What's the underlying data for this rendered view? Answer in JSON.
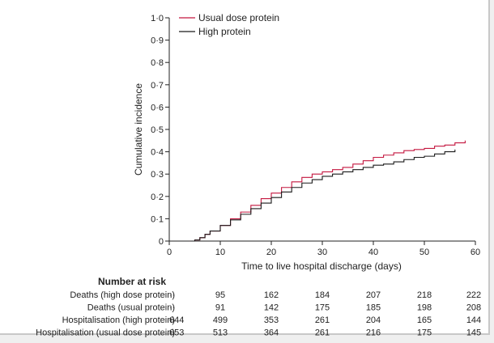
{
  "chart_data": {
    "type": "line",
    "ylabel": "Cumulative incidence",
    "xlabel": "Time to live hospital discharge (days)",
    "xlim": [
      0,
      60
    ],
    "ylim": [
      0,
      1.0
    ],
    "x_ticks": [
      0,
      10,
      20,
      30,
      40,
      50,
      60
    ],
    "x_tick_labels": [
      "0",
      "10",
      "20",
      "30",
      "40",
      "50",
      "60"
    ],
    "y_ticks": [
      0,
      0.1,
      0.2,
      0.3,
      0.4,
      0.5,
      0.6,
      0.7,
      0.8,
      0.9,
      1.0
    ],
    "y_tick_labels": [
      "0",
      "0·1",
      "0·2",
      "0·3",
      "0·4",
      "0·5",
      "0·6",
      "0·7",
      "0·8",
      "0·9",
      "1·0"
    ],
    "grid": false,
    "legend_position": "top-left",
    "series": [
      {
        "name": "Usual dose protein",
        "color": "#c4163f",
        "x": [
          4,
          5,
          6,
          7,
          8,
          10,
          12,
          14,
          16,
          18,
          20,
          22,
          24,
          26,
          28,
          30,
          32,
          34,
          36,
          38,
          40,
          42,
          44,
          46,
          48,
          50,
          52,
          54,
          56,
          58
        ],
        "y": [
          0,
          0.005,
          0.015,
          0.03,
          0.045,
          0.07,
          0.1,
          0.13,
          0.16,
          0.19,
          0.215,
          0.24,
          0.265,
          0.285,
          0.3,
          0.31,
          0.32,
          0.33,
          0.345,
          0.36,
          0.375,
          0.385,
          0.395,
          0.405,
          0.41,
          0.415,
          0.425,
          0.43,
          0.44,
          0.45
        ]
      },
      {
        "name": "High protein",
        "color": "#1a1a1a",
        "x": [
          4,
          5,
          6,
          7,
          8,
          10,
          12,
          14,
          16,
          18,
          20,
          22,
          24,
          26,
          28,
          30,
          32,
          34,
          36,
          38,
          40,
          42,
          44,
          46,
          48,
          50,
          52,
          54,
          56
        ],
        "y": [
          0,
          0.005,
          0.015,
          0.03,
          0.045,
          0.07,
          0.095,
          0.12,
          0.145,
          0.17,
          0.195,
          0.22,
          0.24,
          0.26,
          0.275,
          0.29,
          0.3,
          0.31,
          0.32,
          0.33,
          0.34,
          0.345,
          0.355,
          0.365,
          0.375,
          0.38,
          0.39,
          0.4,
          0.41
        ]
      }
    ]
  },
  "risk_table": {
    "title": "Number at risk",
    "rows": [
      {
        "label": "Deaths (high dose protein)",
        "values": [
          "··",
          "95",
          "162",
          "184",
          "207",
          "218",
          "222"
        ]
      },
      {
        "label": "Deaths (usual protein)",
        "values": [
          "··",
          "91",
          "142",
          "175",
          "185",
          "198",
          "208"
        ]
      },
      {
        "label": "Hospitalisation (high protein)",
        "values": [
          "644",
          "499",
          "353",
          "261",
          "204",
          "165",
          "144"
        ]
      },
      {
        "label": "Hospitalisation (usual dose protein)",
        "values": [
          "653",
          "513",
          "364",
          "261",
          "216",
          "175",
          "145"
        ]
      }
    ]
  }
}
